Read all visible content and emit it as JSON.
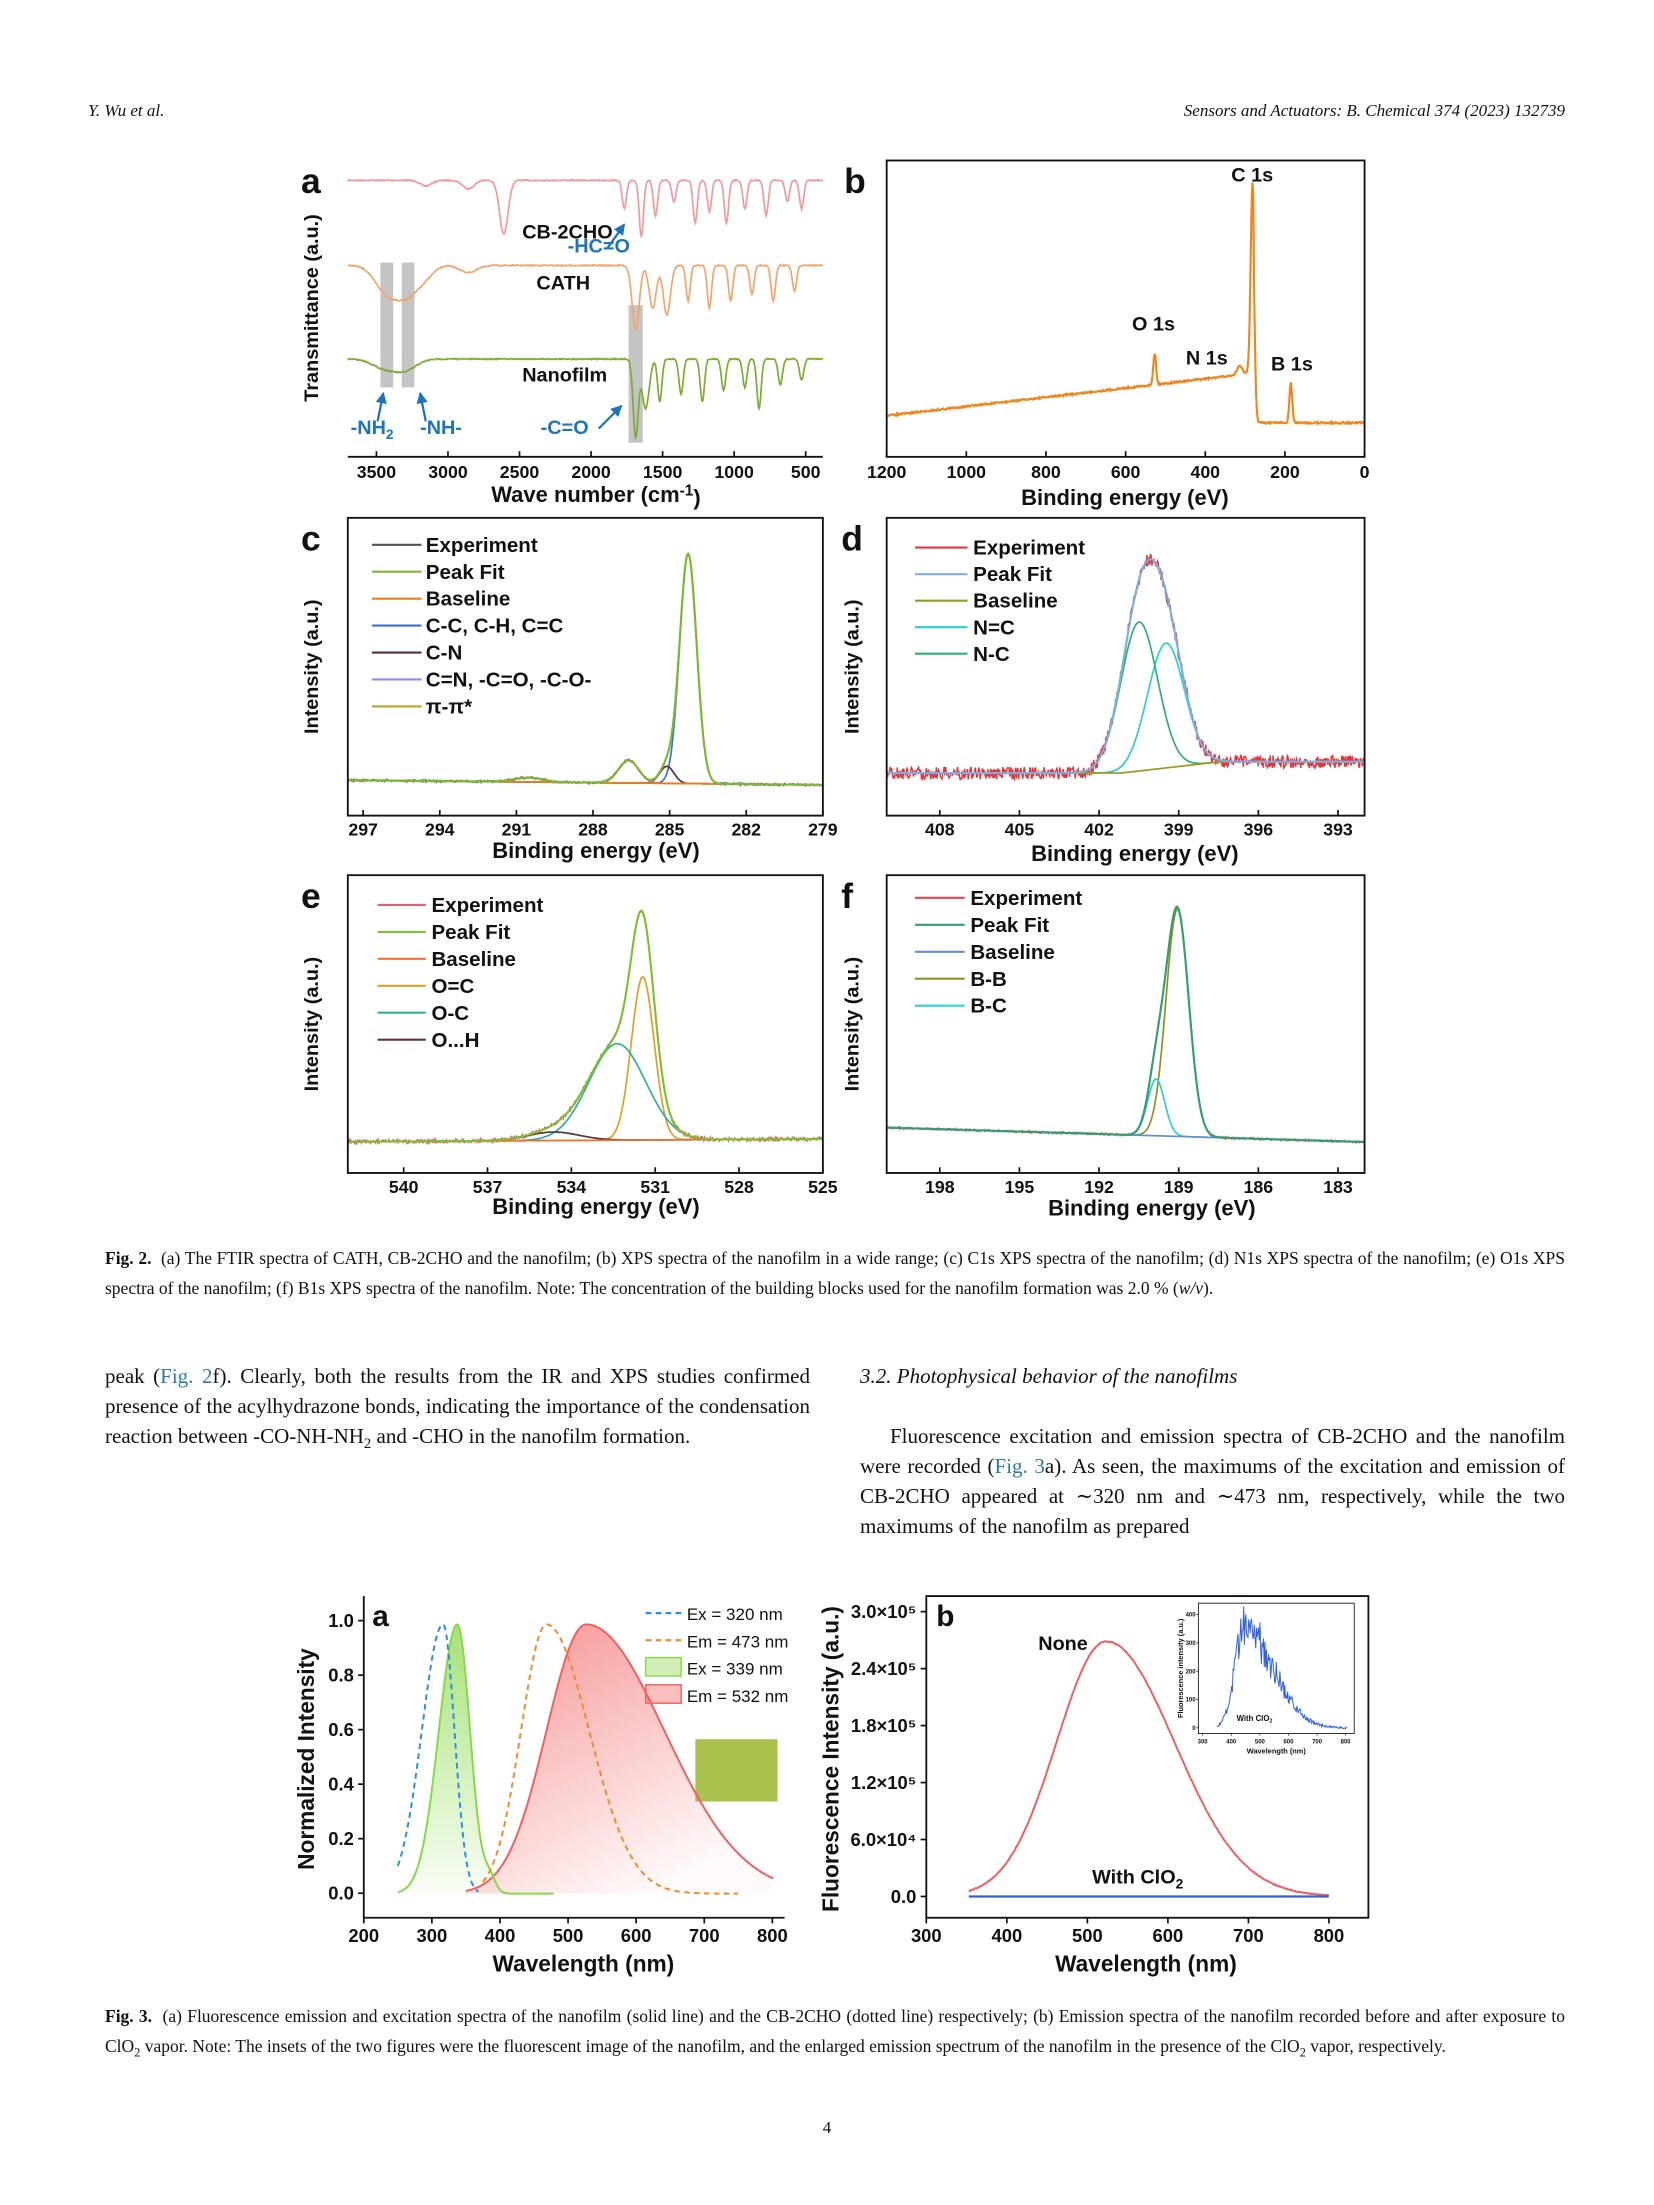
{
  "header": {
    "authors": "Y. Wu et al.",
    "journal": "Sensors and Actuators: B. Chemical 374 (2023) 132739"
  },
  "figure_2": {
    "panels": [
      {
        "letter": "a",
        "y_label": "Transmittance (a.u.)",
        "x_label": [
          "Wave number (cm",
          "-1",
          ")"
        ],
        "xlim": [
          3700,
          380
        ],
        "xticks": [
          3500,
          3000,
          2500,
          2000,
          1500,
          1000,
          500
        ],
        "traces": [
          {
            "name": "CB-2CHO",
            "color": "#f29a9a"
          },
          {
            "name": "CATH",
            "color": "#f3a56a"
          },
          {
            "name": "Nanofilm",
            "color": "#7aad32"
          }
        ],
        "annotations": [
          "-HC=O",
          [
            "-NH",
            "2"
          ],
          "-NH-",
          "-C=O"
        ],
        "annotation_color": "#1c75bc"
      },
      {
        "letter": "b",
        "x_label": "Binding energy (eV)",
        "xlim": [
          1200,
          0
        ],
        "xticks": [
          1200,
          1000,
          800,
          600,
          400,
          200,
          0
        ],
        "color": "#f0861a",
        "annotations": [
          "C 1s",
          "O 1s",
          "N 1s",
          "B 1s"
        ]
      },
      {
        "letter": "c",
        "y_label": "Intensity (a.u.)",
        "x_label": "Binding energy (eV)",
        "xlim": [
          297.6,
          279
        ],
        "xticks": [
          297,
          294,
          291,
          288,
          285,
          282,
          279
        ],
        "legend": [
          {
            "name": "Experiment",
            "color": "#555555"
          },
          {
            "name": "Peak Fit",
            "color": "#7cb82f"
          },
          {
            "name": "Baseline",
            "color": "#f07a1a"
          },
          {
            "name": "C-C, C-H, C=C",
            "color": "#3a6fd8"
          },
          {
            "name": "C-N",
            "color": "#5a2a4a"
          },
          {
            "name": "C=N, -C=O, -C-O-",
            "color": "#a080e0"
          },
          {
            "name": "π-π*",
            "color": "#c0a020"
          }
        ]
      },
      {
        "letter": "d",
        "y_label": "Intensity (a.u.)",
        "x_label": "Binding energy (eV)",
        "xlim": [
          410,
          392
        ],
        "xticks": [
          408,
          405,
          402,
          399,
          396,
          393
        ],
        "legend": [
          {
            "name": "Experiment",
            "color": "#e8333a"
          },
          {
            "name": "Peak Fit",
            "color": "#7ab0e0"
          },
          {
            "name": "Baseline",
            "color": "#9a9a20"
          },
          {
            "name": "N=C",
            "color": "#2ad0d0"
          },
          {
            "name": "N-C",
            "color": "#30b070"
          }
        ]
      },
      {
        "letter": "e",
        "y_label": "Intensity (a.u.)",
        "x_label": "Binding energy (eV)",
        "xlim": [
          542,
          525
        ],
        "xticks": [
          540,
          537,
          534,
          531,
          528,
          525
        ],
        "legend": [
          {
            "name": "Experiment",
            "color": "#e06070"
          },
          {
            "name": "Peak Fit",
            "color": "#80c030"
          },
          {
            "name": "Baseline",
            "color": "#f07030"
          },
          {
            "name": "O=C",
            "color": "#e0a020"
          },
          {
            "name": "O-C",
            "color": "#30b0a0"
          },
          {
            "name": "O...H",
            "color": "#603040"
          }
        ]
      },
      {
        "letter": "f",
        "y_label": "Intensity (a.u.)",
        "x_label": "Binding energy (eV)",
        "xlim": [
          200,
          182
        ],
        "xticks": [
          198,
          195,
          192,
          189,
          186,
          183
        ],
        "legend": [
          {
            "name": "Experiment",
            "color": "#e8404a"
          },
          {
            "name": "Peak Fit",
            "color": "#30a070"
          },
          {
            "name": "Baseline",
            "color": "#6090d0"
          },
          {
            "name": "B-B",
            "color": "#909020"
          },
          {
            "name": "B-C",
            "color": "#30d0d0"
          }
        ]
      }
    ],
    "caption": {
      "label": "Fig. 2.",
      "text": [
        "(a) The FTIR spectra of CATH, CB-2CHO and the nanofilm; (b) XPS spectra of the nanofilm in a wide range; (c) C1s XPS spectra of the nanofilm; (d) N1s XPS spectra of the nanofilm; (e) O1s XPS spectra of the nanofilm; (f) B1s XPS spectra of the nanofilm. Note: The concentration of the building blocks used for the nanofilm formation was 2.0 % (",
        "w/v",
        ")."
      ]
    }
  },
  "body": {
    "left_paragraph": [
      "peak (",
      "Fig. 2",
      "f). Clearly, both the results from the IR and XPS studies confirmed presence of the acylhydrazone bonds, indicating the importance of the condensation reaction between -CO-NH-NH",
      "2",
      " and -CHO in the nanofilm formation."
    ],
    "section_heading": "3.2. Photophysical behavior of the nanofilms",
    "right_paragraph": [
      "Fluorescence excitation and emission spectra of CB-2CHO and the nanofilm were recorded (",
      "Fig. 3",
      "a). As seen, the maximums of the excitation and emission of CB-2CHO appeared at ∼320 nm and ∼473 nm, respectively, while the two maximums of the nanofilm as prepared"
    ]
  },
  "figure_3": {
    "panels": [
      {
        "letter": "a",
        "y_label": "Normalized Intensity",
        "x_label": "Wavelength (nm)",
        "xlim": [
          200,
          818
        ],
        "ylim": [
          -0.09,
          1.09
        ],
        "xticks": [
          200,
          300,
          400,
          500,
          600,
          700,
          800
        ],
        "yticks": [
          {
            "value": 0,
            "label": "0.0"
          },
          0.2,
          0.4,
          0.6,
          0.8,
          {
            "value": 1,
            "label": "1.0"
          }
        ],
        "legend": [
          {
            "name": "Ex = 320 nm",
            "color": "#2b8fe0",
            "style": "dashed"
          },
          {
            "name": "Em = 473 nm",
            "color": "#f08a30",
            "style": "dashed"
          },
          {
            "name": "Ex = 339 nm",
            "color": "#88d848",
            "style": "filled"
          },
          {
            "name": "Em = 532 nm",
            "color": "#f06060",
            "style": "filled"
          }
        ]
      },
      {
        "letter": "b",
        "y_label": "Fluorescence Intensity (a.u.)",
        "x_label": "Wavelength (nm)",
        "xlim": [
          300,
          849
        ],
        "ylim": [
          -22400,
          316400
        ],
        "xticks": [
          300,
          400,
          500,
          600,
          700,
          800
        ],
        "yticks": [
          {
            "value": 0,
            "label": "0.0"
          },
          {
            "value": 60000,
            "label": "6.0×10⁴"
          },
          {
            "value": 120000,
            "label": "1.2×10⁵"
          },
          {
            "value": 180000,
            "label": "1.8×10⁵"
          },
          {
            "value": 240000,
            "label": "2.4×10⁵"
          },
          {
            "value": 300000,
            "label": "3.0×10⁵"
          }
        ],
        "series": [
          {
            "name": "None",
            "color": "#f06060"
          },
          {
            "name": [
              "With ClO",
              "2"
            ],
            "color": "#3060e0"
          }
        ],
        "inset": {
          "y_label": "Fluorescence intensity (a.u.)",
          "x_label": "Wavelength (nm)",
          "xlim": [
            285,
            830
          ],
          "ylim": [
            -20,
            440
          ],
          "xticks": [
            300,
            400,
            500,
            600,
            700,
            800
          ],
          "yticks": [
            0,
            100,
            200,
            300,
            400
          ],
          "label": [
            "With ClO",
            "2"
          ]
        }
      }
    ],
    "caption": {
      "label": "Fig. 3.",
      "text": [
        "(a) Fluorescence emission and excitation spectra of the nanofilm (solid line) and the CB-2CHO (dotted line) respectively; (b) Emission spectra of the nanofilm recorded before and after exposure to ClO",
        "2",
        " vapor. Note: The insets of the two figures were the fluorescent image of the nanofilm, and the enlarged emission spectrum of the nanofilm in the presence of the ClO",
        "2",
        " vapor, respectively."
      ]
    }
  },
  "page_number": "4"
}
